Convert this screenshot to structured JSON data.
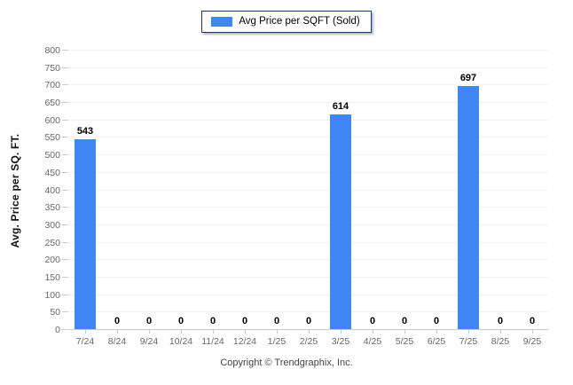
{
  "legend": {
    "label": "Avg Price per SQFT (Sold)"
  },
  "chart_data": {
    "type": "bar",
    "title": "",
    "categories": [
      "7/24",
      "8/24",
      "9/24",
      "10/24",
      "11/24",
      "12/24",
      "1/25",
      "2/25",
      "3/25",
      "4/25",
      "5/25",
      "6/25",
      "7/25",
      "8/25",
      "9/25"
    ],
    "values": [
      543,
      0,
      0,
      0,
      0,
      0,
      0,
      0,
      614,
      0,
      0,
      0,
      697,
      0,
      0
    ],
    "xlabel": "",
    "ylabel": "Avg. Price per SQ. FT.",
    "ylim": [
      0,
      800
    ],
    "yticks": [
      0,
      50,
      100,
      150,
      200,
      250,
      300,
      350,
      400,
      450,
      500,
      550,
      600,
      650,
      700,
      750,
      800
    ],
    "grid": "horizontal",
    "legend_position": "top-center",
    "legend_entries": [
      "Avg Price per SQFT (Sold)"
    ],
    "value_labels_shown": true
  },
  "footer": {
    "copyright": "Copyright © Trendgraphix, Inc."
  },
  "colors": {
    "bar": "#4285f4",
    "grid": "#f1f1f1",
    "axis": "#c8c8c8",
    "tick_label": "#666666",
    "value_label": "#000000",
    "legend_border": "#1c3e68",
    "copyright": "#444444"
  }
}
